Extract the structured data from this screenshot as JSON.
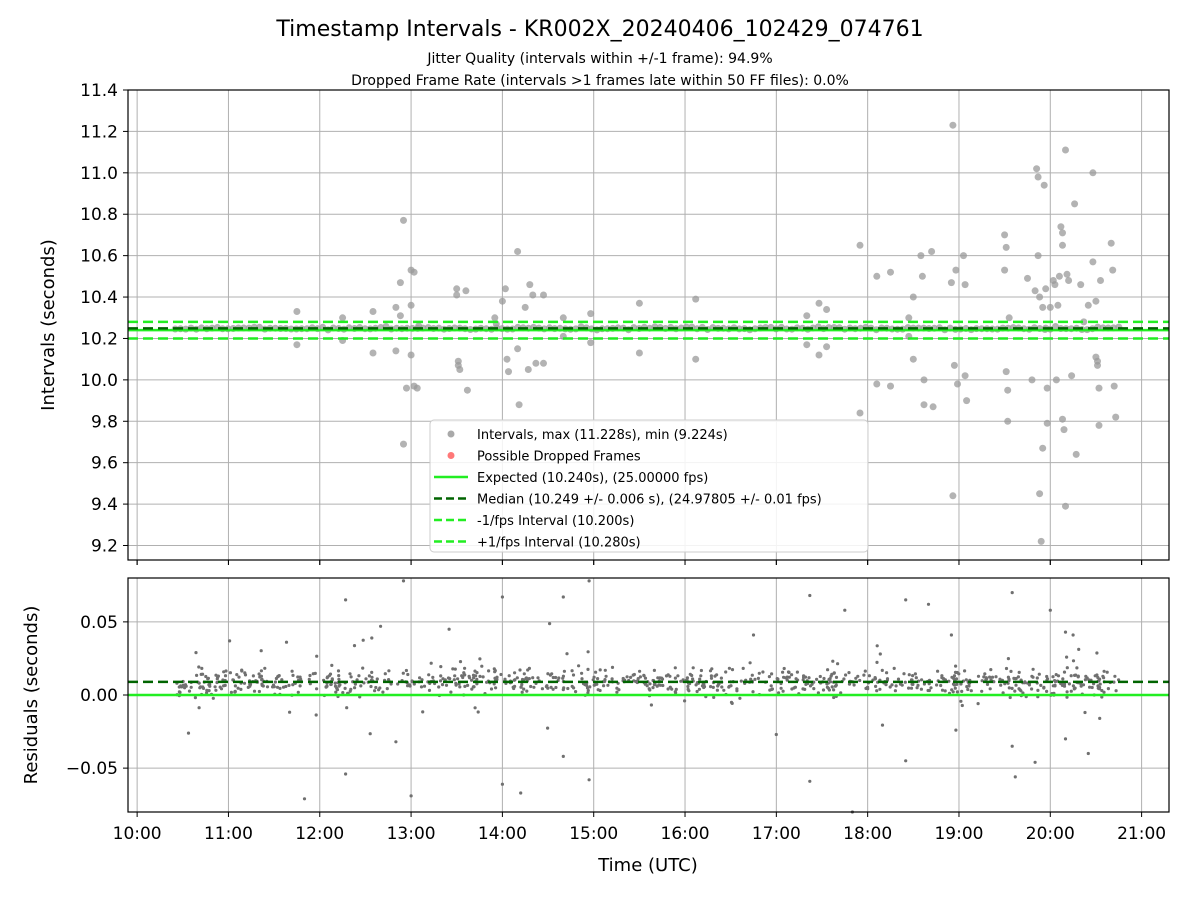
{
  "chart_data": [
    {
      "type": "scatter",
      "title": "Timestamp Intervals - KR002X_20240406_102429_074761",
      "subtitle_lines": [
        "Jitter Quality (intervals within +/-1 frame): 94.9%",
        "Dropped Frame Rate (intervals >1 frames late within 50 FF files): 0.0%"
      ],
      "xlabel": "",
      "ylabel": "Intervals (seconds)",
      "xlim": [
        "09:54",
        "21:18"
      ],
      "ylim": [
        9.13,
        11.4
      ],
      "y_ticks": [
        "9.2",
        "9.4",
        "9.6",
        "9.8",
        "10.0",
        "10.2",
        "10.4",
        "10.6",
        "10.8",
        "11.0",
        "11.2",
        "11.4"
      ],
      "x_ticks": [
        "10:00",
        "11:00",
        "12:00",
        "13:00",
        "14:00",
        "15:00",
        "16:00",
        "17:00",
        "18:00",
        "19:00",
        "20:00",
        "21:00"
      ],
      "grid": true,
      "legend_position": "lower-center",
      "legend": [
        {
          "kind": "marker",
          "color": "#9a9a9a",
          "label": "Intervals, max (11.228s), min (9.224s)"
        },
        {
          "kind": "marker",
          "color": "#ff6060",
          "label": "Possible Dropped Frames"
        },
        {
          "kind": "solid",
          "color": "#22ee22",
          "label": "Expected (10.240s), (25.00000 fps)"
        },
        {
          "kind": "dashed",
          "color": "#006400",
          "label": "Median (10.249 +/- 0.006 s), (24.97805 +/- 0.01 fps)"
        },
        {
          "kind": "dashed",
          "color": "#22ee22",
          "label": "-1/fps Interval (10.200s)"
        },
        {
          "kind": "dashed",
          "color": "#22ee22",
          "label": "+1/fps Interval (10.280s)"
        }
      ],
      "reference_lines": {
        "expected": 10.24,
        "median": 10.249,
        "minus_1_fps": 10.2,
        "plus_1_fps": 10.28
      },
      "series": [
        {
          "name": "Intervals, max (11.228s), min (9.224s)",
          "baseline_band": {
            "x_start": "10:25",
            "x_end": "20:45",
            "value": 10.249
          },
          "outliers": [
            [
              "11:45",
              10.33
            ],
            [
              "11:45",
              10.17
            ],
            [
              "12:15",
              10.3
            ],
            [
              "12:15",
              10.19
            ],
            [
              "12:35",
              10.33
            ],
            [
              "12:35",
              10.13
            ],
            [
              "12:50",
              10.35
            ],
            [
              "12:50",
              10.14
            ],
            [
              "12:53",
              10.47
            ],
            [
              "12:53",
              10.31
            ],
            [
              "12:55",
              10.77
            ],
            [
              "12:55",
              9.69
            ],
            [
              "12:57",
              9.96
            ],
            [
              "13:00",
              10.53
            ],
            [
              "13:00",
              10.36
            ],
            [
              "13:00",
              10.12
            ],
            [
              "13:02",
              10.52
            ],
            [
              "13:02",
              9.97
            ],
            [
              "13:04",
              9.96
            ],
            [
              "13:05",
              10.26
            ],
            [
              "13:30",
              10.44
            ],
            [
              "13:30",
              10.41
            ],
            [
              "13:31",
              10.09
            ],
            [
              "13:31",
              10.07
            ],
            [
              "13:32",
              10.05
            ],
            [
              "13:36",
              10.43
            ],
            [
              "13:37",
              9.95
            ],
            [
              "13:55",
              10.3
            ],
            [
              "13:56",
              10.27
            ],
            [
              "14:00",
              10.38
            ],
            [
              "14:02",
              10.44
            ],
            [
              "14:03",
              10.1
            ],
            [
              "14:04",
              10.04
            ],
            [
              "14:10",
              10.62
            ],
            [
              "14:10",
              10.15
            ],
            [
              "14:11",
              9.88
            ],
            [
              "14:15",
              10.35
            ],
            [
              "14:17",
              10.05
            ],
            [
              "14:18",
              10.46
            ],
            [
              "14:20",
              10.41
            ],
            [
              "14:22",
              10.08
            ],
            [
              "14:27",
              10.41
            ],
            [
              "14:27",
              10.08
            ],
            [
              "14:40",
              10.3
            ],
            [
              "14:40",
              10.21
            ],
            [
              "14:58",
              10.32
            ],
            [
              "14:58",
              10.18
            ],
            [
              "15:30",
              10.37
            ],
            [
              "15:30",
              10.13
            ],
            [
              "16:07",
              10.39
            ],
            [
              "16:07",
              10.1
            ],
            [
              "17:20",
              10.31
            ],
            [
              "17:20",
              10.17
            ],
            [
              "17:28",
              10.37
            ],
            [
              "17:28",
              10.12
            ],
            [
              "17:33",
              10.34
            ],
            [
              "17:33",
              10.16
            ],
            [
              "17:55",
              10.65
            ],
            [
              "17:55",
              9.84
            ],
            [
              "18:06",
              10.5
            ],
            [
              "18:06",
              9.98
            ],
            [
              "18:15",
              10.52
            ],
            [
              "18:15",
              9.97
            ],
            [
              "18:27",
              10.3
            ],
            [
              "18:27",
              10.21
            ],
            [
              "18:30",
              10.4
            ],
            [
              "18:30",
              10.1
            ],
            [
              "18:35",
              10.6
            ],
            [
              "18:36",
              10.5
            ],
            [
              "18:37",
              10.0
            ],
            [
              "18:37",
              9.88
            ],
            [
              "18:42",
              10.62
            ],
            [
              "18:43",
              9.87
            ],
            [
              "18:55",
              10.47
            ],
            [
              "18:56",
              9.44
            ],
            [
              "18:57",
              10.07
            ],
            [
              "18:58",
              10.53
            ],
            [
              "18:59",
              9.98
            ],
            [
              "18:56",
              11.23
            ],
            [
              "19:03",
              10.6
            ],
            [
              "19:04",
              10.46
            ],
            [
              "19:04",
              10.02
            ],
            [
              "19:05",
              9.9
            ],
            [
              "19:30",
              10.7
            ],
            [
              "19:30",
              10.53
            ],
            [
              "19:31",
              10.64
            ],
            [
              "19:31",
              10.04
            ],
            [
              "19:32",
              9.95
            ],
            [
              "19:32",
              9.8
            ],
            [
              "19:33",
              10.3
            ],
            [
              "19:45",
              10.49
            ],
            [
              "19:48",
              10.0
            ],
            [
              "19:50",
              10.43
            ],
            [
              "19:51",
              11.02
            ],
            [
              "19:52",
              10.98
            ],
            [
              "19:52",
              10.6
            ],
            [
              "19:53",
              10.4
            ],
            [
              "19:53",
              9.45
            ],
            [
              "19:54",
              9.22
            ],
            [
              "19:55",
              10.35
            ],
            [
              "19:55",
              9.67
            ],
            [
              "19:56",
              10.94
            ],
            [
              "19:57",
              10.44
            ],
            [
              "19:57",
              10.25
            ],
            [
              "19:58",
              9.96
            ],
            [
              "19:58",
              9.79
            ],
            [
              "20:00",
              10.35
            ],
            [
              "20:02",
              10.48
            ],
            [
              "20:03",
              10.46
            ],
            [
              "20:04",
              10.0
            ],
            [
              "20:05",
              10.36
            ],
            [
              "20:06",
              10.5
            ],
            [
              "20:07",
              10.74
            ],
            [
              "20:08",
              10.71
            ],
            [
              "20:08",
              10.65
            ],
            [
              "20:08",
              9.81
            ],
            [
              "20:09",
              9.76
            ],
            [
              "20:10",
              11.11
            ],
            [
              "20:10",
              9.39
            ],
            [
              "20:11",
              10.51
            ],
            [
              "20:12",
              10.48
            ],
            [
              "20:14",
              10.02
            ],
            [
              "20:16",
              10.85
            ],
            [
              "20:17",
              9.64
            ],
            [
              "20:20",
              10.46
            ],
            [
              "20:22",
              10.28
            ],
            [
              "20:25",
              10.36
            ],
            [
              "20:28",
              11.0
            ],
            [
              "20:28",
              10.57
            ],
            [
              "20:30",
              10.38
            ],
            [
              "20:30",
              10.11
            ],
            [
              "20:31",
              10.09
            ],
            [
              "20:31",
              10.07
            ],
            [
              "20:32",
              9.96
            ],
            [
              "20:32",
              9.78
            ],
            [
              "20:33",
              10.48
            ],
            [
              "20:40",
              10.66
            ],
            [
              "20:41",
              10.53
            ],
            [
              "20:42",
              9.97
            ],
            [
              "20:43",
              9.82
            ]
          ]
        }
      ]
    },
    {
      "type": "scatter",
      "title": "",
      "xlabel": "Time (UTC)",
      "ylabel": "Residuals (seconds)",
      "xlim": [
        "09:54",
        "21:18"
      ],
      "ylim": [
        -0.08,
        0.08
      ],
      "y_ticks": [
        "−0.05",
        "0.00",
        "0.05"
      ],
      "x_ticks": [
        "10:00",
        "11:00",
        "12:00",
        "13:00",
        "14:00",
        "15:00",
        "16:00",
        "17:00",
        "18:00",
        "19:00",
        "20:00",
        "21:00"
      ],
      "grid": true,
      "reference_lines": {
        "zero": 0.0,
        "median_offset": 0.009
      },
      "series": [
        {
          "name": "Residuals",
          "band": {
            "x_start": "10:25",
            "x_end": "20:45",
            "center": 0.009,
            "spread": 0.008,
            "count": 900
          },
          "outliers": [
            [
              "11:50",
              -0.071
            ],
            [
              "12:17",
              0.065
            ],
            [
              "12:17",
              -0.054
            ],
            [
              "12:40",
              0.047
            ],
            [
              "12:50",
              -0.032
            ],
            [
              "12:55",
              0.078
            ],
            [
              "13:00",
              -0.069
            ],
            [
              "13:25",
              0.045
            ],
            [
              "14:00",
              0.067
            ],
            [
              "14:00",
              -0.061
            ],
            [
              "14:12",
              -0.067
            ],
            [
              "14:40",
              0.067
            ],
            [
              "14:40",
              -0.042
            ],
            [
              "14:57",
              0.078
            ],
            [
              "14:57",
              -0.058
            ],
            [
              "16:45",
              0.041
            ],
            [
              "17:00",
              -0.027
            ],
            [
              "17:22",
              0.068
            ],
            [
              "17:22",
              -0.059
            ],
            [
              "17:45",
              0.058
            ],
            [
              "17:50",
              -0.08
            ],
            [
              "18:25",
              0.065
            ],
            [
              "18:25",
              -0.045
            ],
            [
              "18:40",
              0.062
            ],
            [
              "18:55",
              0.041
            ],
            [
              "18:58",
              -0.024
            ],
            [
              "19:35",
              0.07
            ],
            [
              "19:35",
              -0.035
            ],
            [
              "19:50",
              -0.046
            ],
            [
              "20:00",
              0.058
            ],
            [
              "20:10",
              0.043
            ],
            [
              "20:10",
              -0.03
            ],
            [
              "20:15",
              0.041
            ],
            [
              "20:25",
              -0.04
            ],
            [
              "19:37",
              -0.056
            ]
          ]
        }
      ]
    }
  ]
}
